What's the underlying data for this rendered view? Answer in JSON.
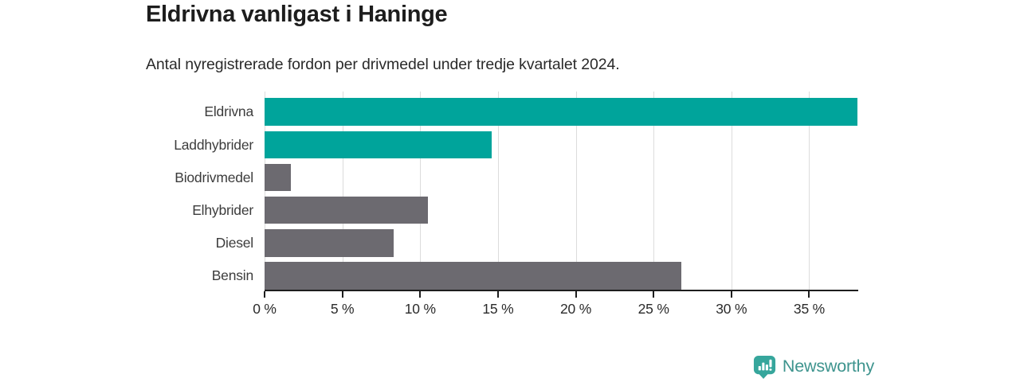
{
  "chart_data": {
    "type": "bar",
    "orientation": "horizontal",
    "title": "Eldrivna vanligast i Haninge",
    "subtitle": "Antal nyregistrerade fordon per drivmedel under tredje kvartalet 2024.",
    "categories": [
      "Eldrivna",
      "Laddhybrider",
      "Biodrivmedel",
      "Elhybrider",
      "Diesel",
      "Bensin"
    ],
    "values": [
      38.1,
      14.6,
      1.7,
      10.5,
      8.3,
      26.8
    ],
    "unit": "%",
    "bar_colors": [
      "#00a49b",
      "#00a49b",
      "#6c6a70",
      "#6c6a70",
      "#6c6a70",
      "#6c6a70"
    ],
    "highlight_color": "#00a49b",
    "default_color": "#6c6a70",
    "xlim": [
      0,
      38.1
    ],
    "xticks": [
      0,
      5,
      10,
      15,
      20,
      25,
      30,
      35
    ],
    "xtick_suffix": " %",
    "grid": true,
    "legend": "none",
    "colors": {
      "gridline": "#dcdcdc",
      "axis": "#1d1d1d",
      "tick_label": "#2b2b2b",
      "category_label": "#3c3c3c",
      "title": "#1d1d1d",
      "subtitle": "#2a2a2a",
      "background": "#ffffff"
    }
  },
  "branding": {
    "logo_text": "Newsworthy",
    "text_color": "#3e948e",
    "icon_color": "#36a69c",
    "icon": "bar-chart-speech-bubble"
  }
}
